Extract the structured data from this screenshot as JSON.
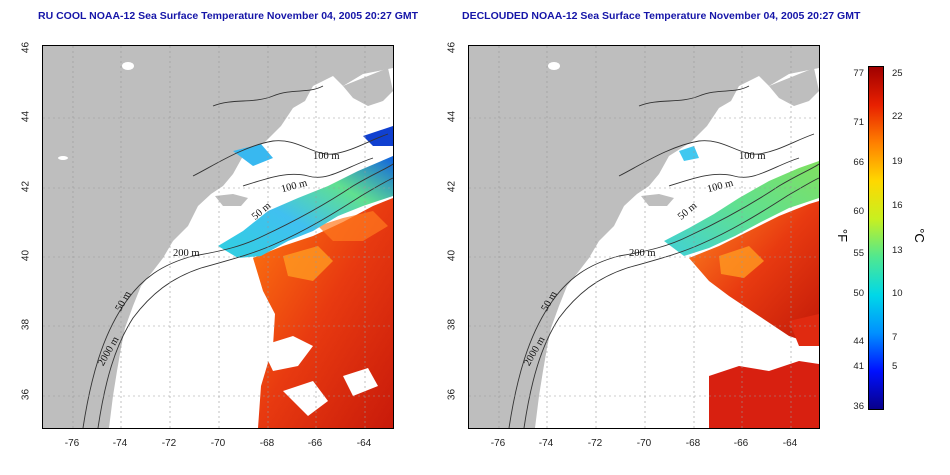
{
  "panels": {
    "left": {
      "title": "RU COOL NOAA-12 Sea Surface Temperature November 04, 2005 20:27 GMT"
    },
    "right": {
      "title": "DECLOUDED NOAA-12 Sea Surface Temperature November 04, 2005 20:27 GMT"
    }
  },
  "axes": {
    "lat_ticks": [
      "46",
      "44",
      "42",
      "40",
      "38",
      "36"
    ],
    "lon_ticks": [
      "-76",
      "-74",
      "-72",
      "-70",
      "-68",
      "-66",
      "-64"
    ]
  },
  "contours": {
    "left": [
      "100 m",
      "100 m",
      "50 m",
      "200 m",
      "50 m",
      "2000 m"
    ],
    "right": [
      "100 m",
      "100 m",
      "50 m",
      "200 m",
      "50 m",
      "2000 m"
    ]
  },
  "colorbar": {
    "fahrenheit_ticks": [
      "77",
      "71",
      "66",
      "60",
      "55",
      "50",
      "44",
      "41",
      "36"
    ],
    "celsius_ticks": [
      "25",
      "22",
      "19",
      "16",
      "13",
      "10",
      "7",
      "5"
    ],
    "unit_f": "°F",
    "unit_c": "°C",
    "colors": [
      "#08008a",
      "#0010ff",
      "#0090ff",
      "#00d8e8",
      "#50e890",
      "#c8f020",
      "#ffd800",
      "#ff8000",
      "#e82000",
      "#a00000"
    ]
  },
  "colors": {
    "land": "#bebebe",
    "title": "#1515a8",
    "contour": "#333333"
  }
}
